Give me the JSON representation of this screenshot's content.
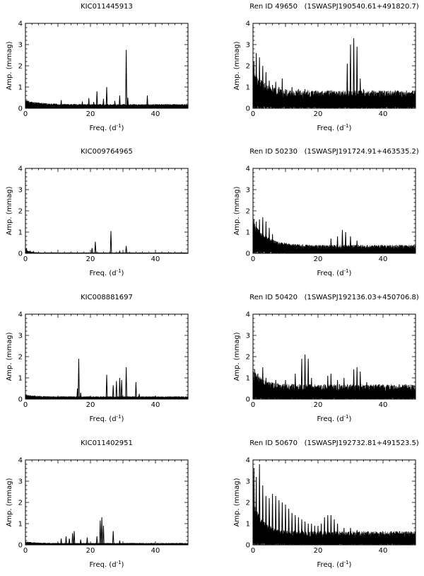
{
  "chart_data": [
    {
      "type": "line",
      "title": "KIC011445913",
      "xlabel": "Freq. (d",
      "xlabel_exp": "-1",
      "xlabel_close": ")",
      "ylabel": "Amp. (mmag)",
      "xlim": [
        0,
        50
      ],
      "ylim": [
        0,
        4
      ],
      "xticks": [
        0,
        20,
        40
      ],
      "yticks": [
        0,
        1,
        2,
        3,
        4
      ],
      "noise": {
        "base": 0.12,
        "var": 0.08,
        "low_freq_boost": 0.15,
        "decay": 4
      },
      "peaks": [
        {
          "x": 0.8,
          "y": 0.35
        },
        {
          "x": 2.0,
          "y": 0.22
        },
        {
          "x": 3.5,
          "y": 0.15
        },
        {
          "x": 9.0,
          "y": 0.22
        },
        {
          "x": 11.0,
          "y": 0.38
        },
        {
          "x": 17.5,
          "y": 0.32
        },
        {
          "x": 19.5,
          "y": 0.48
        },
        {
          "x": 21.0,
          "y": 0.3
        },
        {
          "x": 22.0,
          "y": 0.8
        },
        {
          "x": 24.0,
          "y": 0.45
        },
        {
          "x": 25.0,
          "y": 1.0
        },
        {
          "x": 27.5,
          "y": 0.35
        },
        {
          "x": 29.0,
          "y": 0.6
        },
        {
          "x": 31.0,
          "y": 2.75
        },
        {
          "x": 31.5,
          "y": 0.5
        },
        {
          "x": 37.5,
          "y": 0.6
        }
      ]
    },
    {
      "type": "line",
      "title": "Ren ID 49650   (1SWASPJ190540.61+491820.7)",
      "xlabel": "Freq. (d",
      "xlabel_exp": "-1",
      "xlabel_close": ")",
      "ylabel": "Amp. (mmag)",
      "xlim": [
        0,
        50
      ],
      "ylim": [
        0,
        4
      ],
      "xticks": [
        0,
        20,
        40
      ],
      "yticks": [
        0,
        1,
        2,
        3,
        4
      ],
      "noise": {
        "base": 0.45,
        "var": 0.4,
        "low_freq_boost": 0.9,
        "decay": 3
      },
      "peaks": [
        {
          "x": 0.3,
          "y": 2.2
        },
        {
          "x": 1.0,
          "y": 2.6
        },
        {
          "x": 2.0,
          "y": 2.4
        },
        {
          "x": 3.0,
          "y": 2.0
        },
        {
          "x": 4.0,
          "y": 1.7
        },
        {
          "x": 5.0,
          "y": 1.3
        },
        {
          "x": 6.0,
          "y": 1.1
        },
        {
          "x": 7.0,
          "y": 1.25
        },
        {
          "x": 8.0,
          "y": 1.0
        },
        {
          "x": 9.0,
          "y": 1.4
        },
        {
          "x": 10.0,
          "y": 0.9
        },
        {
          "x": 12.0,
          "y": 1.0
        },
        {
          "x": 14.0,
          "y": 0.9
        },
        {
          "x": 16.0,
          "y": 0.9
        },
        {
          "x": 18.0,
          "y": 0.8
        },
        {
          "x": 20.0,
          "y": 0.8
        },
        {
          "x": 22.0,
          "y": 0.7
        },
        {
          "x": 29.0,
          "y": 2.1
        },
        {
          "x": 30.0,
          "y": 3.0
        },
        {
          "x": 31.0,
          "y": 3.3
        },
        {
          "x": 32.0,
          "y": 2.9
        },
        {
          "x": 33.0,
          "y": 1.4
        },
        {
          "x": 34.0,
          "y": 0.9
        },
        {
          "x": 36.0,
          "y": 0.7
        },
        {
          "x": 38.0,
          "y": 0.6
        }
      ]
    },
    {
      "type": "line",
      "title": "KIC009764965",
      "xlabel": "Freq. (d",
      "xlabel_exp": "-1",
      "xlabel_close": ")",
      "ylabel": "Amp. (mmag)",
      "xlim": [
        0,
        50
      ],
      "ylim": [
        0,
        4
      ],
      "xticks": [
        0,
        20,
        40
      ],
      "yticks": [
        0,
        1,
        2,
        3,
        4
      ],
      "noise": {
        "base": 0.02,
        "var": 0.02,
        "low_freq_boost": 0.15,
        "decay": 1.2
      },
      "peaks": [
        {
          "x": 0.3,
          "y": 0.25
        },
        {
          "x": 1.5,
          "y": 0.1
        },
        {
          "x": 2.5,
          "y": 0.08
        },
        {
          "x": 20.5,
          "y": 0.25
        },
        {
          "x": 21.5,
          "y": 0.55
        },
        {
          "x": 26.3,
          "y": 1.05
        },
        {
          "x": 29.0,
          "y": 0.1
        },
        {
          "x": 31.0,
          "y": 0.35
        }
      ]
    },
    {
      "type": "line",
      "title": "Ren ID 50230   (1SWASPJ191724.91+463535.2)",
      "xlabel": "Freq. (d",
      "xlabel_exp": "-1",
      "xlabel_close": ")",
      "ylabel": "Amp. (mmag)",
      "xlim": [
        0,
        50
      ],
      "ylim": [
        0,
        4
      ],
      "xticks": [
        0,
        20,
        40
      ],
      "yticks": [
        0,
        1,
        2,
        3,
        4
      ],
      "noise": {
        "base": 0.2,
        "var": 0.2,
        "low_freq_boost": 1.0,
        "decay": 4
      },
      "peaks": [
        {
          "x": 0.3,
          "y": 1.6
        },
        {
          "x": 1.0,
          "y": 1.5
        },
        {
          "x": 2.0,
          "y": 1.6
        },
        {
          "x": 3.0,
          "y": 1.7
        },
        {
          "x": 4.0,
          "y": 1.5
        },
        {
          "x": 5.0,
          "y": 1.2
        },
        {
          "x": 6.0,
          "y": 0.9
        },
        {
          "x": 24.0,
          "y": 0.7
        },
        {
          "x": 26.0,
          "y": 0.8
        },
        {
          "x": 27.5,
          "y": 1.1
        },
        {
          "x": 28.5,
          "y": 1.0
        },
        {
          "x": 30.0,
          "y": 0.8
        },
        {
          "x": 32.0,
          "y": 0.6
        }
      ]
    },
    {
      "type": "line",
      "title": "KIC008881697",
      "xlabel": "Freq. (d",
      "xlabel_exp": "-1",
      "xlabel_close": ")",
      "ylabel": "Amp. (mmag)",
      "xlim": [
        0,
        50
      ],
      "ylim": [
        0,
        4
      ],
      "xticks": [
        0,
        20,
        40
      ],
      "yticks": [
        0,
        1,
        2,
        3,
        4
      ],
      "noise": {
        "base": 0.08,
        "var": 0.05,
        "low_freq_boost": 0.05,
        "decay": 3
      },
      "peaks": [
        {
          "x": 16.0,
          "y": 0.5
        },
        {
          "x": 16.4,
          "y": 1.9
        },
        {
          "x": 17.0,
          "y": 0.3
        },
        {
          "x": 25.0,
          "y": 1.15
        },
        {
          "x": 27.0,
          "y": 0.65
        },
        {
          "x": 28.0,
          "y": 0.85
        },
        {
          "x": 29.0,
          "y": 1.0
        },
        {
          "x": 29.6,
          "y": 0.9
        },
        {
          "x": 31.0,
          "y": 1.5
        },
        {
          "x": 34.0,
          "y": 0.8
        },
        {
          "x": 35.0,
          "y": 0.25
        },
        {
          "x": 40.0,
          "y": 0.15
        }
      ]
    },
    {
      "type": "line",
      "title": "Ren ID 50420   (1SWASPJ192136.03+450706.8)",
      "xlabel": "Freq. (d",
      "xlabel_exp": "-1",
      "xlabel_close": ")",
      "ylabel": "Amp. (mmag)",
      "xlim": [
        0,
        50
      ],
      "ylim": [
        0,
        4
      ],
      "xticks": [
        0,
        20,
        40
      ],
      "yticks": [
        0,
        1,
        2,
        3,
        4
      ],
      "noise": {
        "base": 0.35,
        "var": 0.35,
        "low_freq_boost": 0.5,
        "decay": 3
      },
      "peaks": [
        {
          "x": 0.5,
          "y": 1.4
        },
        {
          "x": 1.5,
          "y": 1.2
        },
        {
          "x": 3.0,
          "y": 1.5
        },
        {
          "x": 4.0,
          "y": 1.0
        },
        {
          "x": 7.0,
          "y": 0.9
        },
        {
          "x": 10.0,
          "y": 0.9
        },
        {
          "x": 13.0,
          "y": 1.2
        },
        {
          "x": 15.0,
          "y": 1.9
        },
        {
          "x": 16.0,
          "y": 2.1
        },
        {
          "x": 17.0,
          "y": 1.9
        },
        {
          "x": 18.0,
          "y": 1.0
        },
        {
          "x": 23.0,
          "y": 1.1
        },
        {
          "x": 24.0,
          "y": 1.2
        },
        {
          "x": 26.0,
          "y": 0.9
        },
        {
          "x": 28.0,
          "y": 1.0
        },
        {
          "x": 31.0,
          "y": 1.4
        },
        {
          "x": 32.0,
          "y": 1.5
        },
        {
          "x": 33.0,
          "y": 1.3
        },
        {
          "x": 35.0,
          "y": 0.8
        },
        {
          "x": 40.0,
          "y": 0.6
        },
        {
          "x": 45.0,
          "y": 0.5
        }
      ]
    },
    {
      "type": "line",
      "title": "KIC011402951",
      "xlabel": "Freq. (d",
      "xlabel_exp": "-1",
      "xlabel_close": ")",
      "ylabel": "Amp. (mmag)",
      "xlim": [
        0,
        50
      ],
      "ylim": [
        0,
        4
      ],
      "xticks": [
        0,
        20,
        40
      ],
      "yticks": [
        0,
        1,
        2,
        3,
        4
      ],
      "noise": {
        "base": 0.05,
        "var": 0.04,
        "low_freq_boost": 0.05,
        "decay": 3
      },
      "peaks": [
        {
          "x": 11.0,
          "y": 0.3
        },
        {
          "x": 12.5,
          "y": 0.4
        },
        {
          "x": 13.5,
          "y": 0.3
        },
        {
          "x": 14.5,
          "y": 0.55
        },
        {
          "x": 15.0,
          "y": 0.65
        },
        {
          "x": 17.0,
          "y": 0.25
        },
        {
          "x": 19.0,
          "y": 0.35
        },
        {
          "x": 22.0,
          "y": 0.4
        },
        {
          "x": 23.0,
          "y": 1.15
        },
        {
          "x": 23.5,
          "y": 1.3
        },
        {
          "x": 24.0,
          "y": 0.9
        },
        {
          "x": 27.0,
          "y": 0.65
        },
        {
          "x": 29.0,
          "y": 0.2
        }
      ]
    },
    {
      "type": "line",
      "title": "Ren ID 50670   (1SWASPJ192732.81+491523.5)",
      "xlabel": "Freq. (d",
      "xlabel_exp": "-1",
      "xlabel_close": ")",
      "ylabel": "Amp. (mmag)",
      "xlim": [
        0,
        50
      ],
      "ylim": [
        0,
        4
      ],
      "xticks": [
        0,
        20,
        40
      ],
      "yticks": [
        0,
        1,
        2,
        3,
        4
      ],
      "noise": {
        "base": 0.35,
        "var": 0.3,
        "low_freq_boost": 1.3,
        "decay": 3
      },
      "peaks": [
        {
          "x": 0.3,
          "y": 3.6
        },
        {
          "x": 1.0,
          "y": 3.2
        },
        {
          "x": 2.0,
          "y": 3.8
        },
        {
          "x": 3.0,
          "y": 2.8
        },
        {
          "x": 4.0,
          "y": 2.3
        },
        {
          "x": 5.0,
          "y": 2.2
        },
        {
          "x": 6.0,
          "y": 2.4
        },
        {
          "x": 7.0,
          "y": 2.3
        },
        {
          "x": 8.0,
          "y": 2.1
        },
        {
          "x": 9.0,
          "y": 2.0
        },
        {
          "x": 10.0,
          "y": 1.9
        },
        {
          "x": 11.0,
          "y": 1.7
        },
        {
          "x": 12.0,
          "y": 1.5
        },
        {
          "x": 13.0,
          "y": 1.4
        },
        {
          "x": 14.0,
          "y": 1.3
        },
        {
          "x": 15.0,
          "y": 1.2
        },
        {
          "x": 16.0,
          "y": 1.1
        },
        {
          "x": 17.0,
          "y": 1.0
        },
        {
          "x": 18.0,
          "y": 1.0
        },
        {
          "x": 19.0,
          "y": 0.9
        },
        {
          "x": 20.0,
          "y": 0.9
        },
        {
          "x": 21.0,
          "y": 1.0
        },
        {
          "x": 22.0,
          "y": 1.3
        },
        {
          "x": 23.0,
          "y": 1.4
        },
        {
          "x": 24.0,
          "y": 1.4
        },
        {
          "x": 25.0,
          "y": 1.2
        },
        {
          "x": 26.0,
          "y": 1.0
        },
        {
          "x": 28.0,
          "y": 0.8
        },
        {
          "x": 30.0,
          "y": 0.8
        },
        {
          "x": 32.0,
          "y": 0.7
        },
        {
          "x": 35.0,
          "y": 0.6
        },
        {
          "x": 38.0,
          "y": 0.6
        },
        {
          "x": 41.0,
          "y": 0.55
        },
        {
          "x": 44.0,
          "y": 0.55
        },
        {
          "x": 47.0,
          "y": 0.6
        }
      ]
    }
  ]
}
